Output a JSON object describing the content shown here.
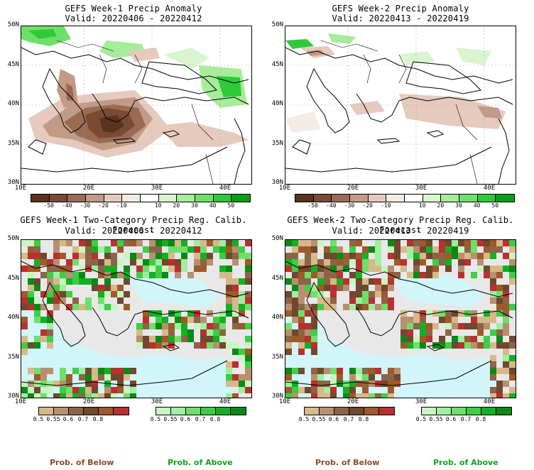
{
  "panels": [
    {
      "title": "GEFS Week-1 Precip Anomaly",
      "valid": "Valid: 20220406 - 20220412"
    },
    {
      "title": "GEFS Week-2 Precip Anomaly",
      "valid": "Valid: 20220413 - 20220419"
    },
    {
      "title": "GEFS Week-1 Two-Category Precip Reg. Calib. Forecast",
      "valid": "Valid: 20220406 - 20220412"
    },
    {
      "title": "GEFS Week-2 Two-Category Precip Reg. Calib. Forecast",
      "valid": "Valid: 20220413 - 20220419"
    }
  ],
  "lat_labels": [
    "50N",
    "45N",
    "40N",
    "35N",
    "30N"
  ],
  "lon_labels": [
    "10E",
    "20E",
    "30E",
    "40E"
  ],
  "anomaly_colorbar": {
    "labels": [
      "-50",
      "-40",
      "-30",
      "-20",
      "-10",
      "10",
      "20",
      "30",
      "40",
      "50"
    ],
    "colors": [
      "#5a3220",
      "#7a4a35",
      "#9a6a55",
      "#c29a88",
      "#e6cabe",
      "#f5ebe5",
      "#ffffff",
      "#d8f5d0",
      "#a6ec9a",
      "#6ee06a",
      "#2fca3a",
      "#0a9d1a"
    ]
  },
  "below_colorbar": {
    "labels": [
      "0.5",
      "0.55",
      "0.6",
      "0.7",
      "0.8"
    ],
    "colors": [
      "#d8b888",
      "#b89070",
      "#8c6448",
      "#70482e",
      "#9e5a2a",
      "#b83030"
    ]
  },
  "above_colorbar": {
    "labels": [
      "0.5",
      "0.55",
      "0.6",
      "0.7",
      "0.8"
    ],
    "colors": [
      "#c8f5c0",
      "#a0eea0",
      "#6ee06a",
      "#3cce44",
      "#14b024",
      "#0a8a14"
    ]
  },
  "legend_text": {
    "below": "Prob. of Below",
    "above": "Prob. of Above"
  },
  "colors": {
    "sea": "#d2f5fa",
    "land_missing": "#e8e8e8",
    "border": "#000000"
  }
}
